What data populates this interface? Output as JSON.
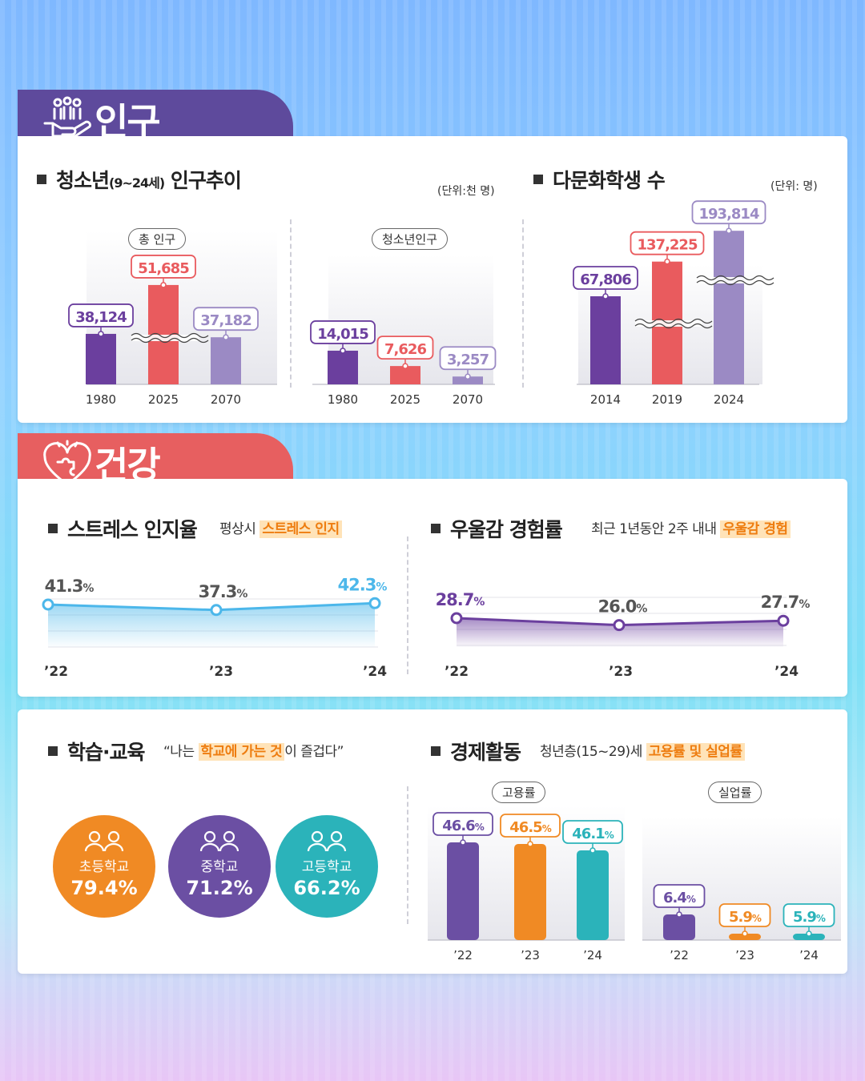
{
  "sections": {
    "population": {
      "title": "인구"
    },
    "health": {
      "title": "건강"
    }
  },
  "youth_population": {
    "title_main": "청소년",
    "title_range": "(9~24세)",
    "title_rest": " 인구추이",
    "unit": "(단위:천 명)",
    "total_label": "총 인구",
    "youth_label": "청소년인구"
  },
  "multicultural": {
    "title": "다문화학생 수",
    "unit": "(단위: 명)"
  },
  "stress": {
    "title": "스트레스 인지율",
    "sub_plain": "평상시 ",
    "sub_highlight": "스트레스 인지"
  },
  "depression": {
    "title": "우울감 경험률",
    "sub_plain": "최근 1년동안 2주 내내 ",
    "sub_highlight": "우울감 경험"
  },
  "education": {
    "title": "학습·교육",
    "quote_open": "“나는 ",
    "quote_highlight": "학교에 가는 것",
    "quote_close": "이 즐겁다”",
    "schools": [
      {
        "label": "초등학교",
        "value": "79.4%",
        "color": "#f08a24"
      },
      {
        "label": "중학교",
        "value": "71.2%",
        "color": "#6b4fa3"
      },
      {
        "label": "고등학교",
        "value": "66.2%",
        "color": "#2bb3ba"
      }
    ]
  },
  "economy": {
    "title": "경제활동",
    "sub_plain": "청년층(15~29)세 ",
    "sub_highlight": "고용률 및 실업률",
    "employment_label": "고용률",
    "unemployment_label": "실업률"
  },
  "colors": {
    "purple": "#6b3f9e",
    "red": "#e95b5e",
    "lavender": "#9b8ac4",
    "orange": "#f08a24",
    "teal": "#2bb3ba",
    "sky": "#4cb7ea",
    "deep_purple": "#6b4fa3"
  },
  "chart_data": [
    {
      "type": "bar",
      "title": "총 인구",
      "categories": [
        "1980",
        "2025",
        "2070"
      ],
      "values": [
        38124,
        51685,
        37182
      ],
      "labels": [
        "38,124",
        "51,685",
        "37,182"
      ],
      "unit": "천 명"
    },
    {
      "type": "bar",
      "title": "청소년인구",
      "categories": [
        "1980",
        "2025",
        "2070"
      ],
      "values": [
        14015,
        7626,
        3257
      ],
      "labels": [
        "14,015",
        "7,626",
        "3,257"
      ],
      "unit": "천 명"
    },
    {
      "type": "bar",
      "title": "다문화학생 수",
      "categories": [
        "2014",
        "2019",
        "2024"
      ],
      "values": [
        67806,
        137225,
        193814
      ],
      "labels": [
        "67,806",
        "137,225",
        "193,814"
      ],
      "unit": "명"
    },
    {
      "type": "line",
      "title": "스트레스 인지율",
      "categories": [
        "’22",
        "’23",
        "’24"
      ],
      "values": [
        41.3,
        37.3,
        42.3
      ],
      "labels": [
        "41.3",
        "37.3",
        "42.3"
      ],
      "unit": "%"
    },
    {
      "type": "line",
      "title": "우울감 경험률",
      "categories": [
        "’22",
        "’23",
        "’24"
      ],
      "values": [
        28.7,
        26.0,
        27.7
      ],
      "labels": [
        "28.7",
        "26.0",
        "27.7"
      ],
      "unit": "%"
    },
    {
      "type": "bar",
      "title": "고용률",
      "categories": [
        "’22",
        "’23",
        "’24"
      ],
      "values": [
        46.6,
        46.5,
        46.1
      ],
      "labels": [
        "46.6",
        "46.5",
        "46.1"
      ],
      "unit": "%"
    },
    {
      "type": "bar",
      "title": "실업률",
      "categories": [
        "’22",
        "’23",
        "’24"
      ],
      "values": [
        6.4,
        5.9,
        5.9
      ],
      "labels": [
        "6.4",
        "5.9",
        "5.9"
      ],
      "unit": "%"
    }
  ]
}
